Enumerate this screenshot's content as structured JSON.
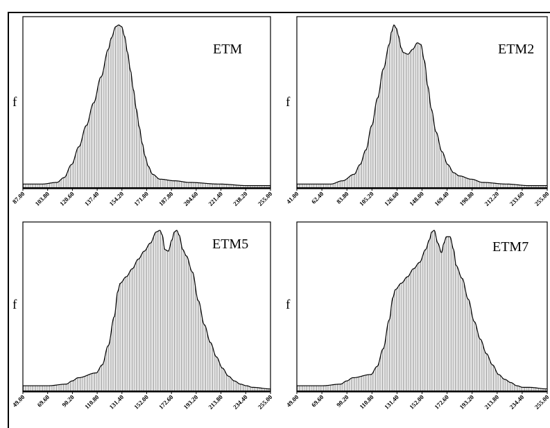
{
  "chart_data": [
    {
      "type": "area",
      "title": "ETM",
      "ylabel": "f",
      "tick_labels": [
        "87.00",
        "103.80",
        "120.60",
        "137.40",
        "154.20",
        "171.00",
        "187.80",
        "204.60",
        "221.40",
        "238.20",
        "255.00"
      ],
      "xlim": [
        87.0,
        255.0
      ],
      "x": [
        87,
        100,
        110,
        115,
        120,
        125,
        130,
        135,
        140,
        145,
        147,
        150,
        152,
        154,
        156,
        158,
        160,
        162,
        164,
        166,
        168,
        170,
        172,
        175,
        180,
        190,
        200,
        220,
        240,
        255
      ],
      "y": [
        0.02,
        0.02,
        0.03,
        0.06,
        0.14,
        0.25,
        0.38,
        0.52,
        0.68,
        0.85,
        0.92,
        0.99,
        1.0,
        0.99,
        0.93,
        0.83,
        0.72,
        0.6,
        0.48,
        0.37,
        0.27,
        0.19,
        0.13,
        0.08,
        0.05,
        0.04,
        0.03,
        0.02,
        0.01,
        0.01
      ]
    },
    {
      "type": "area",
      "title": "ETM2",
      "ylabel": "f",
      "tick_labels": [
        "41.00",
        "62.40",
        "83.80",
        "105.20",
        "126.60",
        "148.00",
        "169.40",
        "190.80",
        "212.20",
        "233.60",
        "255.00"
      ],
      "xlim": [
        41.0,
        255.0
      ],
      "x": [
        41,
        60,
        70,
        80,
        90,
        95,
        100,
        105,
        110,
        115,
        120,
        122,
        124,
        126,
        128,
        130,
        132,
        136,
        140,
        144,
        147,
        150,
        153,
        156,
        160,
        165,
        170,
        175,
        180,
        190,
        200,
        220,
        240,
        255
      ],
      "y": [
        0.02,
        0.02,
        0.02,
        0.04,
        0.08,
        0.14,
        0.23,
        0.38,
        0.55,
        0.73,
        0.88,
        0.96,
        1.0,
        0.98,
        0.93,
        0.86,
        0.83,
        0.82,
        0.85,
        0.89,
        0.88,
        0.78,
        0.62,
        0.48,
        0.34,
        0.22,
        0.14,
        0.09,
        0.07,
        0.05,
        0.03,
        0.02,
        0.01,
        0.01
      ]
    },
    {
      "type": "area",
      "title": "ETM5",
      "ylabel": "f",
      "tick_labels": [
        "49.00",
        "69.60",
        "90.20",
        "110.80",
        "131.40",
        "152.00",
        "172.60",
        "193.20",
        "213.80",
        "234.40",
        "255.00"
      ],
      "xlim": [
        49.0,
        255.0
      ],
      "x": [
        49,
        70,
        85,
        90,
        95,
        110,
        115,
        120,
        125,
        128,
        130,
        135,
        140,
        145,
        150,
        155,
        160,
        163,
        165,
        167,
        170,
        173,
        175,
        177,
        179,
        182,
        185,
        190,
        195,
        200,
        205,
        210,
        215,
        220,
        225,
        230,
        235,
        240,
        255
      ],
      "y": [
        0.03,
        0.03,
        0.04,
        0.06,
        0.08,
        0.11,
        0.16,
        0.28,
        0.46,
        0.62,
        0.67,
        0.71,
        0.76,
        0.82,
        0.87,
        0.92,
        0.99,
        1.0,
        0.97,
        0.88,
        0.87,
        0.94,
        0.99,
        1.0,
        0.97,
        0.88,
        0.84,
        0.74,
        0.56,
        0.41,
        0.3,
        0.21,
        0.14,
        0.09,
        0.06,
        0.04,
        0.03,
        0.02,
        0.01
      ]
    },
    {
      "type": "area",
      "title": "ETM7",
      "ylabel": "f",
      "tick_labels": [
        "49.00",
        "69.60",
        "90.20",
        "110.80",
        "131.40",
        "152.00",
        "172.60",
        "193.20",
        "213.80",
        "234.40",
        "255.00"
      ],
      "xlim": [
        49.0,
        255.0
      ],
      "x": [
        49,
        70,
        85,
        90,
        95,
        110,
        115,
        120,
        125,
        128,
        130,
        135,
        140,
        145,
        150,
        155,
        158,
        160,
        162,
        165,
        168,
        170,
        172,
        175,
        178,
        180,
        185,
        190,
        195,
        200,
        205,
        210,
        215,
        220,
        225,
        230,
        235,
        240,
        255
      ],
      "y": [
        0.03,
        0.03,
        0.04,
        0.06,
        0.08,
        0.1,
        0.15,
        0.26,
        0.44,
        0.58,
        0.63,
        0.67,
        0.71,
        0.76,
        0.8,
        0.88,
        0.94,
        0.99,
        1.0,
        0.92,
        0.86,
        0.92,
        0.96,
        0.96,
        0.88,
        0.78,
        0.7,
        0.57,
        0.43,
        0.32,
        0.23,
        0.16,
        0.1,
        0.07,
        0.05,
        0.03,
        0.02,
        0.02,
        0.01
      ]
    }
  ]
}
